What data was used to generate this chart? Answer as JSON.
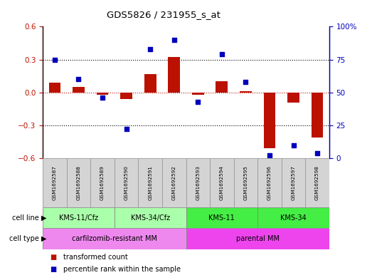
{
  "title": "GDS5826 / 231955_s_at",
  "samples": [
    "GSM1692587",
    "GSM1692588",
    "GSM1692589",
    "GSM1692590",
    "GSM1692591",
    "GSM1692592",
    "GSM1692593",
    "GSM1692594",
    "GSM1692595",
    "GSM1692596",
    "GSM1692597",
    "GSM1692598"
  ],
  "transformed_count": [
    0.09,
    0.05,
    -0.02,
    -0.06,
    0.17,
    0.32,
    -0.02,
    0.1,
    0.01,
    -0.51,
    -0.09,
    -0.41
  ],
  "percentile_rank": [
    75,
    60,
    46,
    22,
    83,
    90,
    43,
    79,
    58,
    2,
    10,
    4
  ],
  "cell_line_groups": [
    {
      "label": "KMS-11/Cfz",
      "start": 0,
      "end": 3,
      "color": "#aaffaa"
    },
    {
      "label": "KMS-34/Cfz",
      "start": 3,
      "end": 6,
      "color": "#aaffaa"
    },
    {
      "label": "KMS-11",
      "start": 6,
      "end": 9,
      "color": "#44ee44"
    },
    {
      "label": "KMS-34",
      "start": 9,
      "end": 12,
      "color": "#44ee44"
    }
  ],
  "cell_type_groups": [
    {
      "label": "carfilzomib-resistant MM",
      "start": 0,
      "end": 6,
      "color": "#ee88ee"
    },
    {
      "label": "parental MM",
      "start": 6,
      "end": 12,
      "color": "#ee44ee"
    }
  ],
  "bar_color": "#bb1100",
  "dot_color": "#0000bb",
  "ylim_left": [
    -0.6,
    0.6
  ],
  "ylim_right": [
    0,
    100
  ],
  "yticks_left": [
    -0.6,
    -0.3,
    0.0,
    0.3,
    0.6
  ],
  "yticks_right": [
    0,
    25,
    50,
    75,
    100
  ],
  "hlines_dotted": [
    0.3,
    -0.3
  ],
  "hline_zero_red_dotted": 0.0,
  "legend_items": [
    {
      "label": "transformed count",
      "color": "#bb1100"
    },
    {
      "label": "percentile rank within the sample",
      "color": "#0000bb"
    }
  ],
  "background_color": "#ffffff",
  "cell_line_label": "cell line",
  "cell_type_label": "cell type"
}
